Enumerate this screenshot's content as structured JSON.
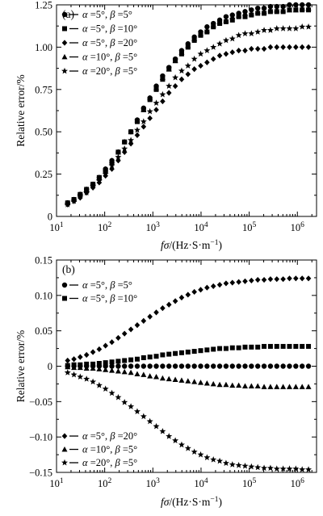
{
  "chart_data": [
    {
      "type": "scatter",
      "panel_label": "(a)",
      "xlabel": [
        "fσ",
        "/(Hz·S·m",
        "−1",
        ")"
      ],
      "ylabel": "Relative error/%",
      "xscale": "log",
      "xlim": [
        10,
        2500000
      ],
      "ylim": [
        0,
        1.25
      ],
      "x_tick_labels": [
        [
          "10",
          "1"
        ],
        [
          "10",
          "2"
        ],
        [
          "10",
          "3"
        ],
        [
          "10",
          "4"
        ],
        [
          "10",
          "5"
        ],
        [
          "10",
          "6"
        ]
      ],
      "y_tick_labels": [
        "0",
        "0.25",
        "0.50",
        "0.75",
        "1.00",
        "1.25"
      ],
      "legend_position": "top-left",
      "x": [
        17,
        23,
        31,
        42,
        57,
        77,
        104,
        141,
        191,
        258,
        350,
        474,
        642,
        869,
        1177,
        1594,
        2158,
        2923,
        3958,
        5360,
        7258,
        9829,
        13311,
        18025,
        24409,
        33055,
        44763,
        60618,
        82088,
        111163,
        150537,
        203857,
        276062,
        373844,
        506258,
        685575,
        928404,
        1257242,
        1702558
      ],
      "series": [
        {
          "name": [
            "α",
            " =5°, ",
            "β",
            " =5°"
          ],
          "marker": "circle",
          "values": [
            0.08,
            0.1,
            0.13,
            0.16,
            0.19,
            0.23,
            0.28,
            0.33,
            0.38,
            0.44,
            0.5,
            0.57,
            0.64,
            0.7,
            0.77,
            0.83,
            0.88,
            0.93,
            0.98,
            1.02,
            1.06,
            1.09,
            1.12,
            1.14,
            1.16,
            1.18,
            1.19,
            1.2,
            1.21,
            1.22,
            1.23,
            1.23,
            1.24,
            1.24,
            1.24,
            1.25,
            1.25,
            1.25,
            1.25
          ]
        },
        {
          "name": [
            "α",
            " =5°, ",
            "β",
            " =10°"
          ],
          "marker": "square",
          "values": [
            0.08,
            0.1,
            0.13,
            0.16,
            0.19,
            0.23,
            0.27,
            0.32,
            0.38,
            0.44,
            0.5,
            0.56,
            0.63,
            0.69,
            0.75,
            0.81,
            0.87,
            0.92,
            0.96,
            1.0,
            1.04,
            1.07,
            1.09,
            1.12,
            1.14,
            1.15,
            1.16,
            1.18,
            1.18,
            1.19,
            1.2,
            1.2,
            1.21,
            1.21,
            1.21,
            1.22,
            1.22,
            1.22,
            1.22
          ]
        },
        {
          "name": [
            "α",
            " =5°, ",
            "β",
            " =20°"
          ],
          "marker": "diamond",
          "values": [
            0.07,
            0.09,
            0.11,
            0.14,
            0.17,
            0.2,
            0.24,
            0.28,
            0.33,
            0.38,
            0.43,
            0.48,
            0.53,
            0.58,
            0.63,
            0.68,
            0.73,
            0.77,
            0.81,
            0.84,
            0.87,
            0.89,
            0.91,
            0.93,
            0.95,
            0.96,
            0.97,
            0.98,
            0.98,
            0.99,
            0.99,
            0.99,
            1.0,
            1.0,
            1.0,
            1.0,
            1.0,
            1.0,
            1.0
          ]
        },
        {
          "name": [
            "α",
            " =10°, ",
            "β",
            " =5°"
          ],
          "marker": "triangle",
          "values": [
            0.08,
            0.1,
            0.13,
            0.16,
            0.19,
            0.23,
            0.28,
            0.33,
            0.38,
            0.44,
            0.5,
            0.57,
            0.63,
            0.7,
            0.76,
            0.82,
            0.87,
            0.92,
            0.97,
            1.01,
            1.05,
            1.08,
            1.1,
            1.13,
            1.15,
            1.16,
            1.18,
            1.19,
            1.2,
            1.2,
            1.21,
            1.21,
            1.22,
            1.22,
            1.22,
            1.22,
            1.22,
            1.23,
            1.23
          ]
        },
        {
          "name": [
            "α",
            " =20°, ",
            "β",
            " =5°"
          ],
          "marker": "star",
          "values": [
            0.07,
            0.09,
            0.12,
            0.14,
            0.18,
            0.21,
            0.25,
            0.3,
            0.35,
            0.4,
            0.45,
            0.51,
            0.56,
            0.62,
            0.67,
            0.72,
            0.77,
            0.82,
            0.86,
            0.89,
            0.93,
            0.96,
            0.98,
            1.0,
            1.02,
            1.04,
            1.05,
            1.07,
            1.08,
            1.08,
            1.09,
            1.1,
            1.1,
            1.11,
            1.11,
            1.11,
            1.11,
            1.12,
            1.12
          ]
        }
      ]
    },
    {
      "type": "scatter",
      "panel_label": "(b)",
      "xlabel": [
        "fσ",
        "/(Hz·S·m",
        "−1",
        ")"
      ],
      "ylabel": "Relative error/%",
      "xscale": "log",
      "xlim": [
        10,
        2500000
      ],
      "ylim": [
        -0.15,
        0.15
      ],
      "x_tick_labels": [
        [
          "10",
          "1"
        ],
        [
          "10",
          "2"
        ],
        [
          "10",
          "3"
        ],
        [
          "10",
          "4"
        ],
        [
          "10",
          "5"
        ],
        [
          "10",
          "6"
        ]
      ],
      "y_tick_labels": [
        "−0.15",
        "−0.10",
        "−0.05",
        "0",
        "0.05",
        "0.10",
        "0.15"
      ],
      "legend_position": "top-left and bottom-left",
      "x": [
        17,
        23,
        31,
        42,
        57,
        77,
        104,
        141,
        191,
        258,
        350,
        474,
        642,
        869,
        1177,
        1594,
        2158,
        2923,
        3958,
        5360,
        7258,
        9829,
        13311,
        18025,
        24409,
        33055,
        44763,
        60618,
        82088,
        111163,
        150537,
        203857,
        276062,
        373844,
        506258,
        685575,
        928404,
        1257242,
        1702558
      ],
      "series": [
        {
          "name": [
            "α",
            " =5°, ",
            "β",
            " =5°"
          ],
          "marker": "circle",
          "values": [
            0,
            0,
            0,
            0,
            0,
            0,
            0,
            0,
            0,
            0,
            0,
            0,
            0,
            0,
            0,
            0,
            0,
            0,
            0,
            0,
            0,
            0,
            0,
            0,
            0,
            0,
            0,
            0,
            0,
            0,
            0,
            0,
            0,
            0,
            0,
            0,
            0,
            0,
            0
          ]
        },
        {
          "name": [
            "α",
            " =5°, ",
            "β",
            " =10°"
          ],
          "marker": "square",
          "values": [
            0.001,
            0.002,
            0.002,
            0.003,
            0.003,
            0.004,
            0.005,
            0.006,
            0.007,
            0.008,
            0.009,
            0.01,
            0.012,
            0.013,
            0.014,
            0.016,
            0.017,
            0.018,
            0.019,
            0.02,
            0.021,
            0.022,
            0.023,
            0.024,
            0.025,
            0.025,
            0.026,
            0.026,
            0.027,
            0.027,
            0.027,
            0.028,
            0.028,
            0.028,
            0.028,
            0.028,
            0.028,
            0.028,
            0.028
          ]
        },
        {
          "name": [
            "α",
            " =5°, ",
            "β",
            " =20°"
          ],
          "marker": "diamond",
          "values": [
            0.008,
            0.01,
            0.013,
            0.016,
            0.02,
            0.024,
            0.029,
            0.034,
            0.04,
            0.046,
            0.052,
            0.058,
            0.064,
            0.07,
            0.076,
            0.082,
            0.087,
            0.092,
            0.097,
            0.101,
            0.105,
            0.108,
            0.111,
            0.113,
            0.115,
            0.117,
            0.118,
            0.119,
            0.12,
            0.121,
            0.122,
            0.122,
            0.123,
            0.123,
            0.123,
            0.124,
            0.124,
            0.124,
            0.124
          ]
        },
        {
          "name": [
            "α",
            " =10°, ",
            "β",
            " =5°"
          ],
          "marker": "triangle",
          "values": [
            -0.001,
            -0.002,
            -0.002,
            -0.003,
            -0.003,
            -0.004,
            -0.005,
            -0.006,
            -0.007,
            -0.008,
            -0.009,
            -0.011,
            -0.012,
            -0.014,
            -0.015,
            -0.017,
            -0.018,
            -0.019,
            -0.02,
            -0.021,
            -0.022,
            -0.023,
            -0.024,
            -0.025,
            -0.026,
            -0.026,
            -0.027,
            -0.027,
            -0.028,
            -0.028,
            -0.028,
            -0.029,
            -0.029,
            -0.029,
            -0.029,
            -0.029,
            -0.029,
            -0.029,
            -0.029
          ]
        },
        {
          "name": [
            "α",
            " =20°, ",
            "β",
            " =5°"
          ],
          "marker": "star",
          "values": [
            -0.009,
            -0.012,
            -0.015,
            -0.018,
            -0.022,
            -0.027,
            -0.032,
            -0.038,
            -0.044,
            -0.051,
            -0.057,
            -0.064,
            -0.071,
            -0.078,
            -0.085,
            -0.092,
            -0.099,
            -0.105,
            -0.111,
            -0.116,
            -0.121,
            -0.125,
            -0.129,
            -0.132,
            -0.134,
            -0.137,
            -0.139,
            -0.14,
            -0.141,
            -0.142,
            -0.143,
            -0.144,
            -0.144,
            -0.145,
            -0.145,
            -0.145,
            -0.145,
            -0.146,
            -0.146
          ]
        }
      ]
    }
  ]
}
